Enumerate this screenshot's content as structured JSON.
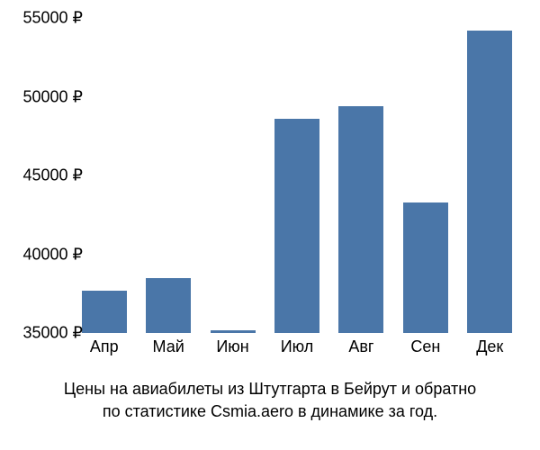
{
  "chart": {
    "type": "bar",
    "categories": [
      "Апр",
      "Май",
      "Июн",
      "Июл",
      "Авг",
      "Сен",
      "Дек"
    ],
    "values": [
      37700,
      38500,
      35200,
      48600,
      49400,
      43300,
      54200
    ],
    "bar_color": "#4a76a8",
    "ylim": [
      35000,
      55000
    ],
    "ytick_step": 5000,
    "yticks": [
      35000,
      40000,
      45000,
      50000,
      55000
    ],
    "ytick_labels": [
      "35000 ₽",
      "40000 ₽",
      "45000 ₽",
      "50000 ₽",
      "55000 ₽"
    ],
    "currency": "₽",
    "background_color": "#ffffff",
    "label_fontsize": 18,
    "bar_width": 0.7,
    "caption_line1": "Цены на авиабилеты из Штутгарта в Бейрут и обратно",
    "caption_line2": "по статистике Csmia.aero в динамике за год.",
    "text_color": "#000000"
  }
}
